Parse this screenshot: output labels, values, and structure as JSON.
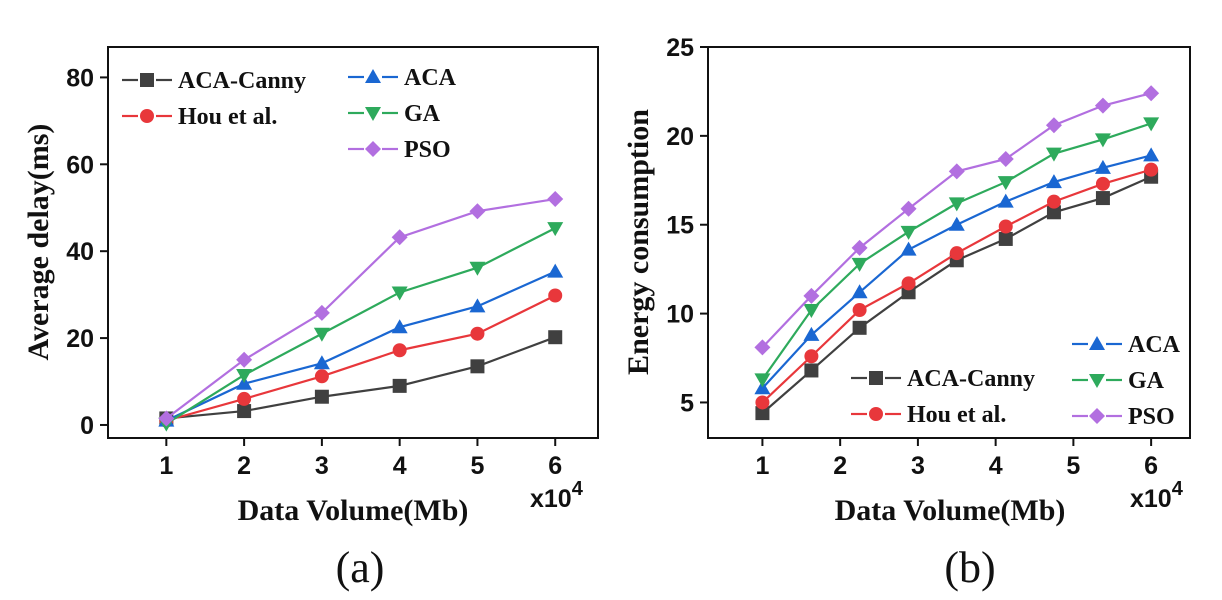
{
  "chart_data": [
    {
      "type": "line",
      "panel_caption": "(a)",
      "xlabel": "Data Volume(Mb)",
      "ylabel": "Average delay(ms)",
      "x_multiplier": "x10",
      "x_multiplier_exp": "4",
      "x": [
        1,
        2,
        3,
        4,
        5,
        6
      ],
      "xlim": [
        0.25,
        6.55
      ],
      "ylim": [
        -3,
        87
      ],
      "xticks": [
        1,
        2,
        3,
        4,
        5,
        6
      ],
      "yticks": [
        0,
        20,
        40,
        60,
        80
      ],
      "grid": false,
      "legend_layout": "top-left, two columns",
      "series": [
        {
          "name": "ACA-Canny",
          "color": "#404040",
          "marker": "square",
          "x": [
            1,
            2,
            3,
            4,
            5,
            6
          ],
          "values": [
            1.5,
            3.2,
            6.5,
            9.0,
            13.5,
            20.2
          ]
        },
        {
          "name": "Hou et al.",
          "color": "#e8373b",
          "marker": "circle",
          "x": [
            1,
            2,
            3,
            4,
            5,
            6
          ],
          "values": [
            1.0,
            6.0,
            11.2,
            17.2,
            21.0,
            29.8
          ]
        },
        {
          "name": "ACA",
          "color": "#1a67d2",
          "marker": "triangle-up",
          "x": [
            1,
            2,
            3,
            4,
            5,
            6
          ],
          "values": [
            1.0,
            9.5,
            14.2,
            22.5,
            27.3,
            35.3
          ]
        },
        {
          "name": "GA",
          "color": "#2eaa5c",
          "marker": "triangle-down",
          "x": [
            1,
            2,
            3,
            4,
            5,
            6
          ],
          "values": [
            0.3,
            11.5,
            21.0,
            30.5,
            36.2,
            45.3
          ]
        },
        {
          "name": "PSO",
          "color": "#b26fe0",
          "marker": "diamond",
          "x": [
            1,
            2,
            3,
            4,
            5,
            6
          ],
          "values": [
            1.5,
            15.0,
            25.8,
            43.2,
            49.2,
            52.0
          ]
        }
      ]
    },
    {
      "type": "line",
      "panel_caption": "(b)",
      "xlabel": "Data Volume(Mb)",
      "ylabel": "Energy consumption",
      "x_multiplier": "x10",
      "x_multiplier_exp": "4",
      "xlim": [
        0.3,
        6.5
      ],
      "ylim": [
        3,
        25
      ],
      "xticks": [
        1,
        2,
        3,
        4,
        5,
        6
      ],
      "yticks": [
        5,
        10,
        15,
        20,
        25
      ],
      "grid": false,
      "legend_layout": "bottom-right, two columns",
      "series": [
        {
          "name": "ACA-Canny",
          "color": "#404040",
          "marker": "square",
          "x": [
            1,
            1.63,
            2.25,
            2.88,
            3.5,
            4.13,
            4.75,
            5.38,
            6
          ],
          "values": [
            4.4,
            6.8,
            9.2,
            11.2,
            13.0,
            14.2,
            15.7,
            16.5,
            17.7
          ]
        },
        {
          "name": "Hou et al.",
          "color": "#e8373b",
          "marker": "circle",
          "x": [
            1,
            1.63,
            2.25,
            2.88,
            3.5,
            4.13,
            4.75,
            5.38,
            6
          ],
          "values": [
            5.0,
            7.6,
            10.2,
            11.7,
            13.4,
            14.9,
            16.3,
            17.3,
            18.1
          ]
        },
        {
          "name": "ACA",
          "color": "#1a67d2",
          "marker": "triangle-up",
          "x": [
            1,
            1.63,
            2.25,
            2.88,
            3.5,
            4.13,
            4.75,
            5.38,
            6
          ],
          "values": [
            5.8,
            8.8,
            11.2,
            13.6,
            15.0,
            16.3,
            17.4,
            18.2,
            18.9
          ]
        },
        {
          "name": "GA",
          "color": "#2eaa5c",
          "marker": "triangle-down",
          "x": [
            1,
            1.63,
            2.25,
            2.88,
            3.5,
            4.13,
            4.75,
            5.38,
            6
          ],
          "values": [
            6.3,
            10.2,
            12.8,
            14.6,
            16.2,
            17.4,
            19.0,
            19.8,
            20.7
          ]
        },
        {
          "name": "PSO",
          "color": "#b26fe0",
          "marker": "diamond",
          "x": [
            1,
            1.63,
            2.25,
            2.88,
            3.5,
            4.13,
            4.75,
            5.38,
            6
          ],
          "values": [
            8.1,
            11.0,
            13.7,
            15.9,
            18.0,
            18.7,
            20.6,
            21.7,
            22.4
          ]
        }
      ]
    }
  ]
}
